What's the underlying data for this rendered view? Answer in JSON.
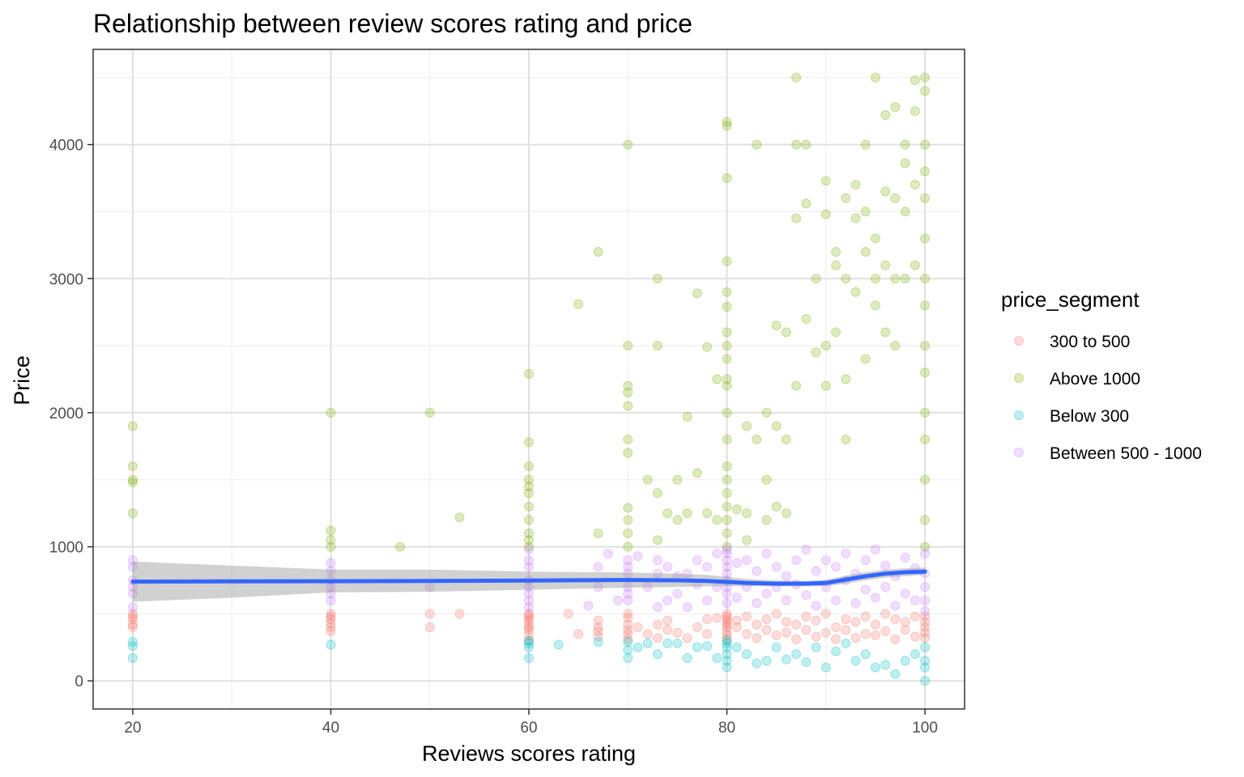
{
  "chart_data": {
    "type": "scatter",
    "title": "Relationship between review scores rating and price",
    "xlabel": "Reviews scores rating",
    "ylabel": "Price",
    "xlim": [
      16,
      104
    ],
    "ylim": [
      -210,
      4710
    ],
    "x_ticks": [
      20,
      40,
      60,
      80,
      100
    ],
    "x_tick_labels": [
      "20",
      "40",
      "60",
      "80",
      "100"
    ],
    "y_ticks": [
      0,
      1000,
      2000,
      3000,
      4000
    ],
    "y_tick_labels": [
      "0",
      "1000",
      "2000",
      "3000",
      "4000"
    ],
    "grid": true,
    "legend": {
      "title": "price_segment",
      "position": "right",
      "entries": [
        "300 to 500",
        "Above 1000",
        "Below 300",
        "Between 500 - 1000"
      ]
    },
    "colors": {
      "300 to 500": "#F8766D",
      "Above 1000": "#7CAE00",
      "Below 300": "#00BFC4",
      "Between 500 - 1000": "#C77CFF",
      "smooth_line": "#3366FF",
      "confidence_band": "#999999"
    },
    "point_alpha": 0.25,
    "series": [
      {
        "name": "300 to 500",
        "x": [
          20,
          20,
          20,
          20,
          20,
          40,
          40,
          40,
          40,
          40,
          40,
          50,
          50,
          53,
          60,
          60,
          60,
          60,
          60,
          60,
          60,
          60,
          60,
          64,
          65,
          67,
          67,
          67,
          67,
          70,
          70,
          70,
          70,
          70,
          70,
          71,
          72,
          73,
          73,
          74,
          74,
          75,
          76,
          77,
          78,
          78,
          79,
          80,
          80,
          80,
          80,
          80,
          80,
          80,
          80,
          80,
          81,
          81,
          82,
          82,
          83,
          83,
          84,
          84,
          85,
          85,
          86,
          86,
          87,
          87,
          88,
          88,
          89,
          89,
          90,
          90,
          91,
          91,
          92,
          92,
          93,
          93,
          94,
          94,
          95,
          95,
          96,
          96,
          97,
          97,
          98,
          98,
          99,
          99,
          100,
          100,
          100,
          100,
          100
        ],
        "y": [
          400,
          420,
          460,
          480,
          500,
          370,
          400,
          430,
          460,
          500,
          480,
          400,
          500,
          500,
          300,
          340,
          380,
          400,
          420,
          450,
          470,
          490,
          500,
          500,
          350,
          330,
          370,
          400,
          450,
          310,
          350,
          380,
          420,
          470,
          500,
          400,
          350,
          320,
          420,
          380,
          450,
          360,
          320,
          400,
          350,
          460,
          470,
          310,
          340,
          370,
          400,
          420,
          440,
          460,
          480,
          500,
          400,
          450,
          350,
          480,
          320,
          420,
          380,
          460,
          340,
          500,
          360,
          440,
          310,
          420,
          380,
          480,
          330,
          450,
          360,
          500,
          310,
          400,
          380,
          460,
          320,
          440,
          350,
          480,
          340,
          420,
          370,
          500,
          310,
          460,
          380,
          440,
          330,
          480,
          320,
          360,
          400,
          440,
          480
        ]
      },
      {
        "name": "Above 1000",
        "x": [
          20,
          20,
          20,
          20,
          20,
          40,
          40,
          40,
          40,
          47,
          50,
          53,
          60,
          60,
          60,
          60,
          60,
          60,
          60,
          60,
          60,
          60,
          60,
          65,
          67,
          67,
          70,
          70,
          70,
          70,
          70,
          70,
          70,
          70,
          70,
          70,
          70,
          72,
          73,
          73,
          73,
          73,
          74,
          75,
          75,
          76,
          76,
          77,
          77,
          78,
          78,
          79,
          79,
          80,
          80,
          80,
          80,
          80,
          80,
          80,
          80,
          80,
          80,
          80,
          80,
          80,
          80,
          80,
          80,
          80,
          80,
          80,
          80,
          81,
          82,
          82,
          82,
          83,
          83,
          84,
          84,
          84,
          85,
          85,
          85,
          86,
          86,
          86,
          87,
          87,
          87,
          87,
          88,
          88,
          88,
          89,
          89,
          90,
          90,
          90,
          90,
          91,
          91,
          91,
          92,
          92,
          92,
          92,
          93,
          93,
          93,
          94,
          94,
          94,
          94,
          95,
          95,
          95,
          95,
          96,
          96,
          96,
          96,
          97,
          97,
          97,
          97,
          98,
          98,
          98,
          98,
          99,
          99,
          99,
          99,
          100,
          100,
          100,
          100,
          100,
          100,
          100,
          100,
          100,
          100,
          100,
          100,
          100,
          100,
          100
        ],
        "y": [
          1900,
          1600,
          1500,
          1480,
          1250,
          2000,
          1120,
          1000,
          1050,
          1000,
          2000,
          1220,
          2290,
          1780,
          1600,
          1500,
          1450,
          1400,
          1300,
          1200,
          1100,
          1050,
          1000,
          2810,
          3200,
          1100,
          4000,
          2500,
          2200,
          2150,
          2050,
          1800,
          1700,
          1290,
          1200,
          1100,
          1000,
          1500,
          1400,
          3000,
          2500,
          1050,
          1250,
          1500,
          1200,
          1970,
          1250,
          2890,
          1550,
          2490,
          1250,
          2250,
          1200,
          4170,
          4140,
          3750,
          3130,
          2900,
          2790,
          2600,
          2500,
          2400,
          2250,
          2200,
          2000,
          1800,
          1600,
          1500,
          1400,
          1300,
          1200,
          1100,
          1000,
          1280,
          1900,
          1250,
          1050,
          4000,
          1800,
          2000,
          1500,
          1200,
          2650,
          1900,
          1300,
          2600,
          1800,
          1250,
          4500,
          4000,
          3450,
          2200,
          4000,
          3560,
          2700,
          3000,
          2450,
          3730,
          3480,
          2500,
          2200,
          3200,
          3100,
          2600,
          3600,
          3000,
          2250,
          1800,
          3700,
          3450,
          2900,
          4000,
          3500,
          3200,
          2400,
          4500,
          3300,
          3000,
          2800,
          4220,
          3650,
          3100,
          2600,
          4280,
          3600,
          3000,
          2500,
          4000,
          3860,
          3500,
          3000,
          4480,
          4250,
          3700,
          3100,
          4500,
          4400,
          4000,
          3800,
          3600,
          3300,
          3000,
          2800,
          2500,
          2300,
          2000,
          1800,
          1500,
          1200,
          1000
        ]
      },
      {
        "name": "Below 300",
        "x": [
          20,
          20,
          20,
          40,
          60,
          60,
          60,
          60,
          63,
          67,
          70,
          70,
          70,
          71,
          72,
          73,
          74,
          75,
          76,
          77,
          78,
          79,
          80,
          80,
          80,
          80,
          80,
          80,
          81,
          82,
          83,
          84,
          85,
          86,
          87,
          88,
          89,
          90,
          91,
          92,
          93,
          94,
          95,
          96,
          97,
          98,
          99,
          100,
          100,
          100,
          100
        ],
        "y": [
          290,
          260,
          170,
          270,
          170,
          250,
          300,
          280,
          270,
          290,
          170,
          230,
          290,
          250,
          280,
          200,
          280,
          280,
          170,
          250,
          260,
          170,
          100,
          150,
          200,
          250,
          280,
          300,
          250,
          200,
          130,
          150,
          250,
          160,
          200,
          140,
          250,
          100,
          220,
          280,
          150,
          200,
          100,
          120,
          50,
          150,
          200,
          0,
          100,
          150,
          250
        ]
      },
      {
        "name": "Between 500 - 1000",
        "x": [
          20,
          20,
          20,
          20,
          20,
          20,
          40,
          40,
          40,
          40,
          40,
          40,
          50,
          60,
          60,
          60,
          60,
          60,
          60,
          60,
          60,
          66,
          67,
          67,
          68,
          69,
          70,
          70,
          70,
          70,
          70,
          70,
          71,
          72,
          73,
          73,
          73,
          74,
          74,
          75,
          75,
          76,
          76,
          77,
          77,
          78,
          78,
          79,
          79,
          80,
          80,
          80,
          80,
          80,
          80,
          80,
          80,
          80,
          81,
          81,
          82,
          82,
          83,
          83,
          84,
          84,
          85,
          85,
          86,
          86,
          87,
          87,
          88,
          88,
          89,
          89,
          90,
          90,
          91,
          91,
          92,
          92,
          93,
          93,
          94,
          94,
          95,
          95,
          96,
          96,
          97,
          97,
          98,
          98,
          99,
          99,
          100,
          100,
          100,
          100,
          100
        ],
        "y": [
          900,
          850,
          750,
          700,
          650,
          550,
          880,
          820,
          750,
          700,
          650,
          600,
          700,
          980,
          900,
          850,
          750,
          700,
          650,
          600,
          550,
          560,
          850,
          700,
          950,
          600,
          900,
          850,
          800,
          700,
          650,
          600,
          930,
          700,
          900,
          800,
          550,
          850,
          600,
          780,
          650,
          800,
          550,
          900,
          720,
          850,
          600,
          950,
          700,
          580,
          650,
          700,
          750,
          800,
          850,
          900,
          950,
          980,
          620,
          880,
          700,
          900,
          580,
          820,
          650,
          950,
          700,
          850,
          600,
          780,
          720,
          900,
          640,
          980,
          560,
          820,
          700,
          900,
          600,
          850,
          750,
          950,
          580,
          800,
          680,
          900,
          620,
          980,
          700,
          860,
          560,
          780,
          650,
          920,
          600,
          840,
          520,
          600,
          700,
          800,
          950
        ]
      }
    ],
    "smooth_line": {
      "x": [
        20,
        30,
        40,
        50,
        60,
        70,
        75,
        78,
        80,
        82,
        85,
        88,
        90,
        92,
        94,
        96,
        98,
        100
      ],
      "y": [
        740,
        742,
        743,
        745,
        748,
        752,
        750,
        745,
        738,
        730,
        725,
        725,
        730,
        755,
        780,
        800,
        810,
        815
      ],
      "ci_lower": [
        590,
        620,
        660,
        665,
        680,
        695,
        700,
        705,
        705,
        705,
        705,
        705,
        705,
        725,
        750,
        770,
        780,
        790
      ],
      "ci_upper": [
        890,
        860,
        830,
        830,
        815,
        808,
        800,
        790,
        775,
        760,
        748,
        745,
        755,
        785,
        810,
        830,
        840,
        845
      ]
    }
  }
}
